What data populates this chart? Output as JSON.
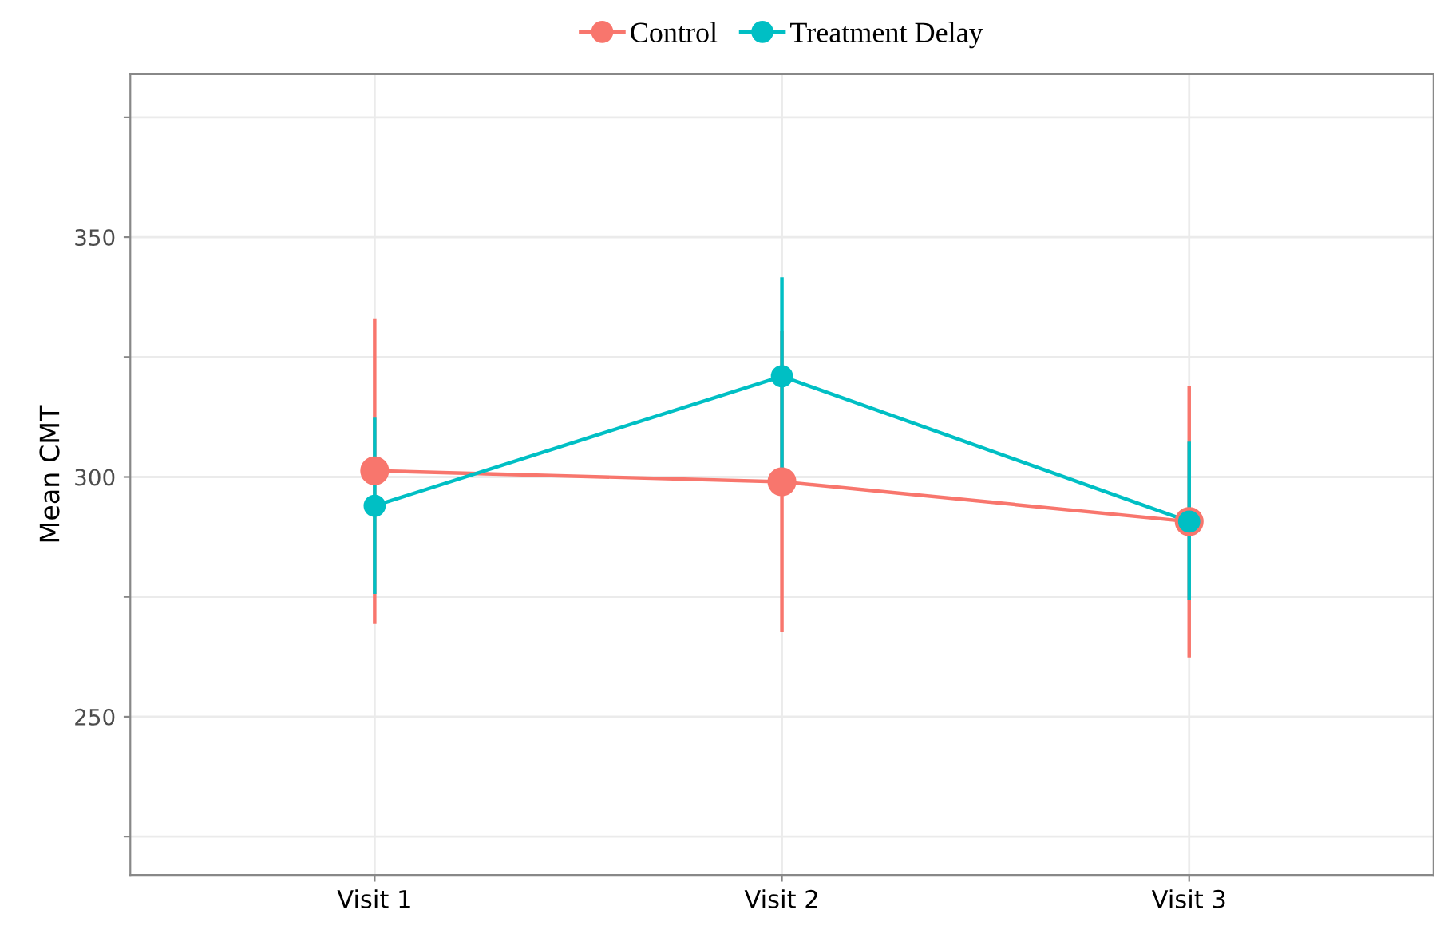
{
  "chart_data": {
    "type": "line",
    "ylabel": "Mean CMT",
    "categories": [
      "Visit 1",
      "Visit 2",
      "Visit 3"
    ],
    "series": [
      {
        "name": "Control",
        "color": "#f8766d",
        "values": [
          301.3,
          299,
          290.7
        ],
        "errors": [
          [
            269.7,
            332.7
          ],
          [
            268,
            330
          ],
          [
            262.7,
            318.7
          ]
        ]
      },
      {
        "name": "Treatment Delay",
        "color": "#00bfc4",
        "values": [
          294,
          321,
          290.7
        ],
        "errors": [
          [
            276,
            312
          ],
          [
            301,
            341.3
          ],
          [
            274.7,
            307
          ]
        ]
      }
    ],
    "ylim": [
      217,
      384
    ],
    "yticks": [
      {
        "value": 225,
        "label": null
      },
      250,
      {
        "value": 275,
        "label": null
      },
      300,
      {
        "value": 325,
        "label": null
      },
      350,
      {
        "value": 375,
        "label": null
      }
    ],
    "grid": true,
    "legend": "top",
    "marker": "circle",
    "line_style": "solid"
  }
}
